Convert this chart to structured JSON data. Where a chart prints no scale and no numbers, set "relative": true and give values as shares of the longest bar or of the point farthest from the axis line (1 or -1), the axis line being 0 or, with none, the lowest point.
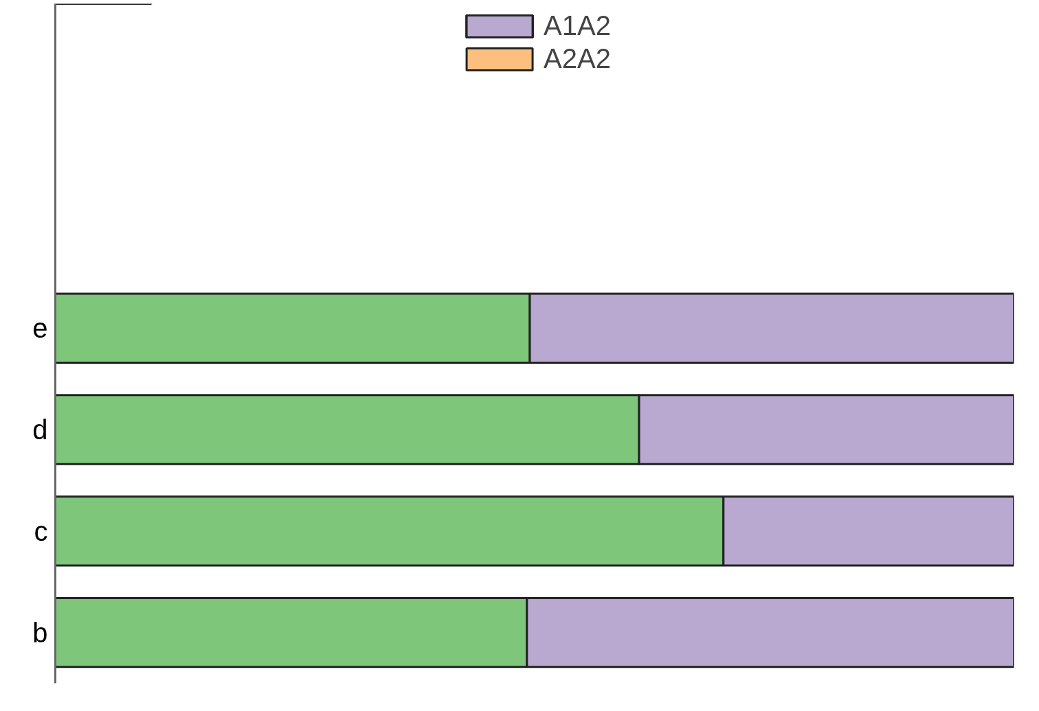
{
  "chart_data": {
    "type": "bar",
    "orientation": "horizontal",
    "stacked": true,
    "relative": true,
    "categories": [
      "e",
      "d",
      "c",
      "b"
    ],
    "series": [
      {
        "color": "#7dc67a",
        "values": [
          0.495,
          0.609,
          0.697,
          0.492
        ]
      },
      {
        "name": "A1A2",
        "color": "#b9a9d1",
        "values": [
          0.505,
          0.391,
          0.303,
          0.508
        ]
      },
      {
        "name": "A2A2",
        "color": "#fdbf80",
        "values": [
          null,
          null,
          null,
          null
        ]
      }
    ],
    "legend": "top"
  }
}
